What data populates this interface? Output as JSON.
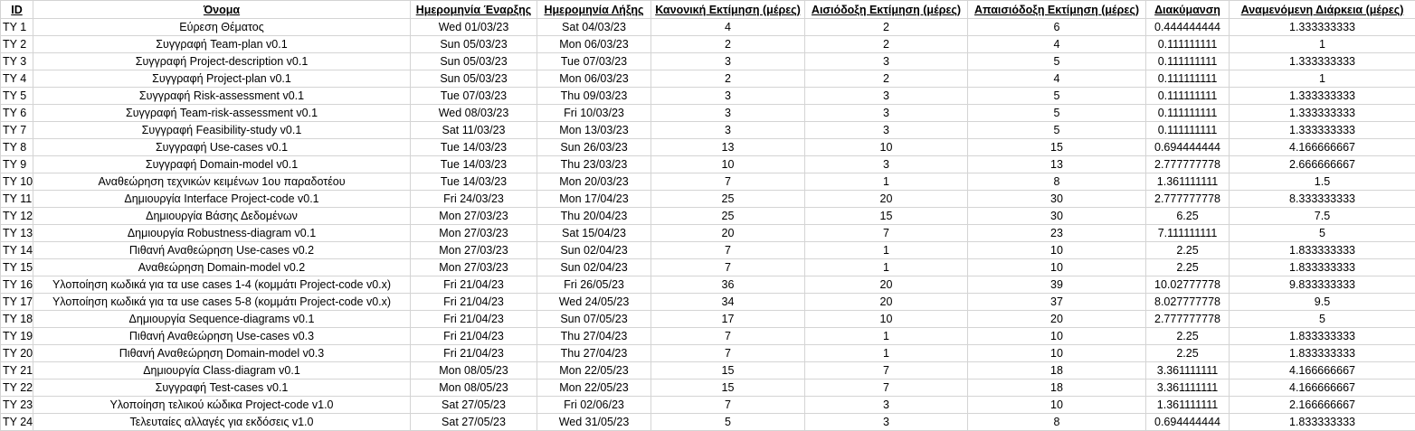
{
  "headers": {
    "id": "ID",
    "name": "Όνομα",
    "start": "Ημερομηνία Έναρξης",
    "end": "Ημερομηνία Λήξης",
    "normal": "Κανονική Εκτίμηση (μέρες)",
    "optimistic": "Αισιόδοξη Εκτίμηση (μέρες)",
    "pessimistic": "Απαισιόδοξη Εκτίμηση (μέρες)",
    "variance": "Διακύμανση",
    "expected": "Αναμενόμενη Διάρκεια (μέρες)"
  },
  "rows": [
    {
      "id": "TY 1",
      "name": "Εύρεση Θέματος",
      "start": "Wed 01/03/23",
      "end": "Sat 04/03/23",
      "normal": "4",
      "optimistic": "2",
      "pessimistic": "6",
      "variance": "0.444444444",
      "expected": "1.333333333"
    },
    {
      "id": "TY 2",
      "name": "Συγγραφή Team-plan v0.1",
      "start": "Sun 05/03/23",
      "end": "Mon 06/03/23",
      "normal": "2",
      "optimistic": "2",
      "pessimistic": "4",
      "variance": "0.111111111",
      "expected": "1"
    },
    {
      "id": "TY 3",
      "name": "Συγγραφή Project-description v0.1",
      "start": "Sun 05/03/23",
      "end": "Tue 07/03/23",
      "normal": "3",
      "optimistic": "3",
      "pessimistic": "5",
      "variance": "0.111111111",
      "expected": "1.333333333"
    },
    {
      "id": "TY 4",
      "name": "Συγγραφή Project-plan v0.1",
      "start": "Sun 05/03/23",
      "end": "Mon 06/03/23",
      "normal": "2",
      "optimistic": "2",
      "pessimistic": "4",
      "variance": "0.111111111",
      "expected": "1"
    },
    {
      "id": "TY 5",
      "name": "Συγγραφή Risk-assessment v0.1",
      "start": "Tue 07/03/23",
      "end": "Thu 09/03/23",
      "normal": "3",
      "optimistic": "3",
      "pessimistic": "5",
      "variance": "0.111111111",
      "expected": "1.333333333"
    },
    {
      "id": "TY 6",
      "name": "Συγγραφή Team-risk-assessment v0.1",
      "start": "Wed 08/03/23",
      "end": "Fri 10/03/23",
      "normal": "3",
      "optimistic": "3",
      "pessimistic": "5",
      "variance": "0.111111111",
      "expected": "1.333333333"
    },
    {
      "id": "TY 7",
      "name": "Συγγραφή Feasibility-study v0.1",
      "start": "Sat 11/03/23",
      "end": "Mon 13/03/23",
      "normal": "3",
      "optimistic": "3",
      "pessimistic": "5",
      "variance": "0.111111111",
      "expected": "1.333333333"
    },
    {
      "id": "TY 8",
      "name": "Συγγραφή Use-cases v0.1",
      "start": "Tue 14/03/23",
      "end": "Sun 26/03/23",
      "normal": "13",
      "optimistic": "10",
      "pessimistic": "15",
      "variance": "0.694444444",
      "expected": "4.166666667"
    },
    {
      "id": "TY 9",
      "name": "Συγγραφή Domain-model v0.1",
      "start": "Tue 14/03/23",
      "end": "Thu 23/03/23",
      "normal": "10",
      "optimistic": "3",
      "pessimistic": "13",
      "variance": "2.777777778",
      "expected": "2.666666667"
    },
    {
      "id": "TY 10",
      "name": "Αναθεώρηση τεχνικών κειμένων 1ου παραδοτέου",
      "start": "Tue 14/03/23",
      "end": "Mon 20/03/23",
      "normal": "7",
      "optimistic": "1",
      "pessimistic": "8",
      "variance": "1.361111111",
      "expected": "1.5"
    },
    {
      "id": "TY 11",
      "name": "Δημιουργία Interface Project-code v0.1",
      "start": "Fri 24/03/23",
      "end": "Mon 17/04/23",
      "normal": "25",
      "optimistic": "20",
      "pessimistic": "30",
      "variance": "2.777777778",
      "expected": "8.333333333"
    },
    {
      "id": "TY 12",
      "name": "Δημιουργία Βάσης Δεδομένων",
      "start": "Mon 27/03/23",
      "end": "Thu 20/04/23",
      "normal": "25",
      "optimistic": "15",
      "pessimistic": "30",
      "variance": "6.25",
      "expected": "7.5"
    },
    {
      "id": "TY 13",
      "name": "Δημιουργία Robustness-diagram v0.1",
      "start": "Mon 27/03/23",
      "end": "Sat 15/04/23",
      "normal": "20",
      "optimistic": "7",
      "pessimistic": "23",
      "variance": "7.111111111",
      "expected": "5"
    },
    {
      "id": "TY 14",
      "name": "Πιθανή Αναθεώρηση Use-cases v0.2",
      "start": "Mon 27/03/23",
      "end": "Sun 02/04/23",
      "normal": "7",
      "optimistic": "1",
      "pessimistic": "10",
      "variance": "2.25",
      "expected": "1.833333333"
    },
    {
      "id": "TY 15",
      "name": "Αναθεώρηση Domain-model v0.2",
      "start": "Mon 27/03/23",
      "end": "Sun 02/04/23",
      "normal": "7",
      "optimistic": "1",
      "pessimistic": "10",
      "variance": "2.25",
      "expected": "1.833333333"
    },
    {
      "id": "TY 16",
      "name": "Υλοποίηση κωδικά για τα use cases 1-4 (κομμάτι Project-code v0.x)",
      "start": "Fri 21/04/23",
      "end": "Fri 26/05/23",
      "normal": "36",
      "optimistic": "20",
      "pessimistic": "39",
      "variance": "10.02777778",
      "expected": "9.833333333"
    },
    {
      "id": "TY 17",
      "name": "Υλοποίηση κωδικά για τα use cases 5-8 (κομμάτι Project-code v0.x)",
      "start": "Fri 21/04/23",
      "end": "Wed 24/05/23",
      "normal": "34",
      "optimistic": "20",
      "pessimistic": "37",
      "variance": "8.027777778",
      "expected": "9.5"
    },
    {
      "id": "TY 18",
      "name": "Δημιουργία Sequence-diagrams v0.1",
      "start": "Fri 21/04/23",
      "end": "Sun 07/05/23",
      "normal": "17",
      "optimistic": "10",
      "pessimistic": "20",
      "variance": "2.777777778",
      "expected": "5"
    },
    {
      "id": "TY 19",
      "name": "Πιθανή Αναθεώρηση Use-cases v0.3",
      "start": "Fri 21/04/23",
      "end": "Thu 27/04/23",
      "normal": "7",
      "optimistic": "1",
      "pessimistic": "10",
      "variance": "2.25",
      "expected": "1.833333333"
    },
    {
      "id": "TY 20",
      "name": "Πιθανή Αναθεώρηση Domain-model v0.3",
      "start": "Fri 21/04/23",
      "end": "Thu 27/04/23",
      "normal": "7",
      "optimistic": "1",
      "pessimistic": "10",
      "variance": "2.25",
      "expected": "1.833333333"
    },
    {
      "id": "TY 21",
      "name": "Δημιουργία Class-diagram v0.1",
      "start": "Mon 08/05/23",
      "end": "Mon 22/05/23",
      "normal": "15",
      "optimistic": "7",
      "pessimistic": "18",
      "variance": "3.361111111",
      "expected": "4.166666667"
    },
    {
      "id": "TY 22",
      "name": "Συγγραφή Test-cases v0.1",
      "start": "Mon 08/05/23",
      "end": "Mon 22/05/23",
      "normal": "15",
      "optimistic": "7",
      "pessimistic": "18",
      "variance": "3.361111111",
      "expected": "4.166666667"
    },
    {
      "id": "TY 23",
      "name": "Υλοποίηση τελικού κώδικα Project-code v1.0",
      "start": "Sat 27/05/23",
      "end": "Fri 02/06/23",
      "normal": "7",
      "optimistic": "3",
      "pessimistic": "10",
      "variance": "1.361111111",
      "expected": "2.166666667"
    },
    {
      "id": "TY 24",
      "name": "Τελευταίες αλλαγές για εκδόσεις v1.0",
      "start": "Sat 27/05/23",
      "end": "Wed 31/05/23",
      "normal": "5",
      "optimistic": "3",
      "pessimistic": "8",
      "variance": "0.694444444",
      "expected": "1.833333333"
    }
  ]
}
